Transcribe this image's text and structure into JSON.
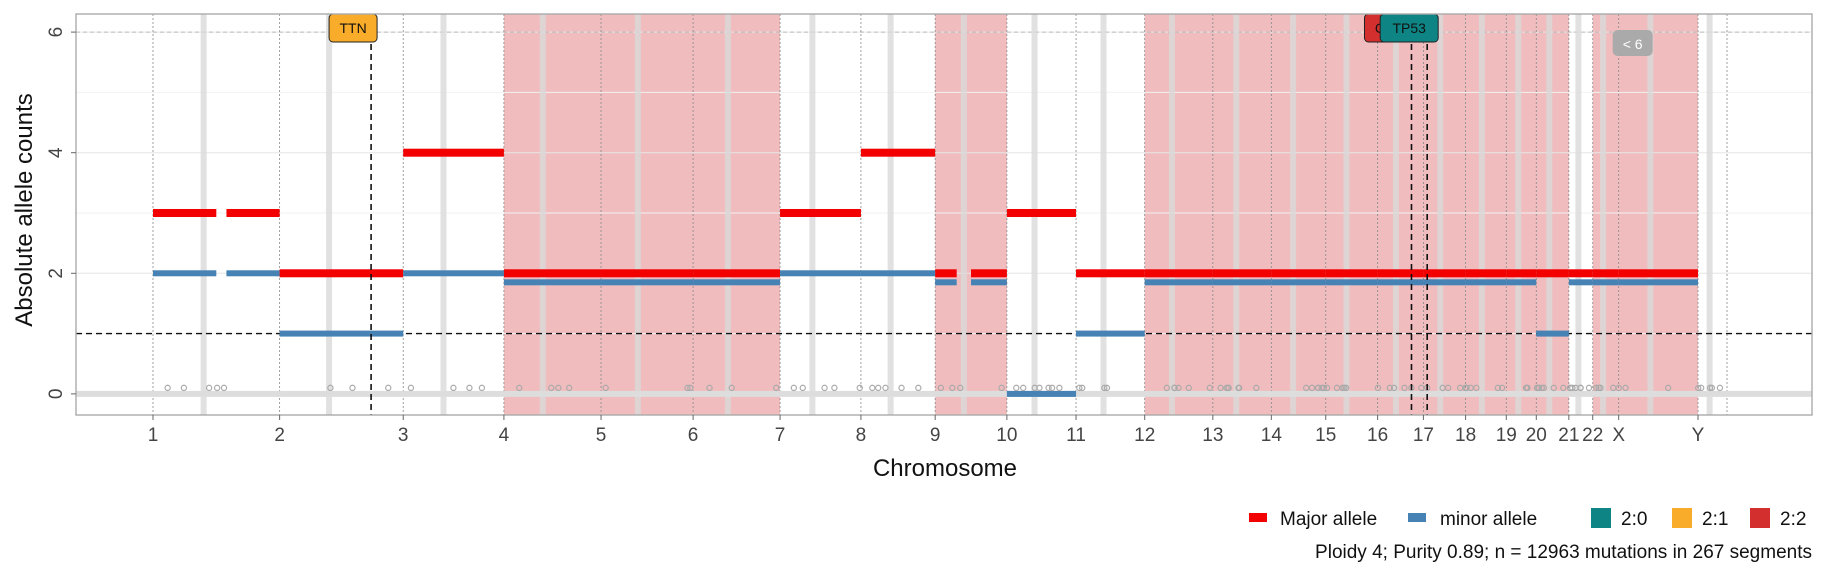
{
  "chart_data": {
    "type": "segments",
    "xlabel": "Chromosome",
    "ylabel": "Absolute allele counts",
    "ylim": [
      -0.35,
      6.3
    ],
    "yticks": [
      0,
      2,
      4,
      6
    ],
    "hline": 1,
    "chromosomes": [
      "1",
      "2",
      "3",
      "4",
      "5",
      "6",
      "7",
      "8",
      "9",
      "10",
      "11",
      "12",
      "13",
      "14",
      "15",
      "16",
      "17",
      "18",
      "19",
      "20",
      "21",
      "22",
      "X",
      "Y"
    ],
    "chrom_sizes_mb": [
      249,
      243,
      198,
      191,
      181,
      171,
      159,
      146,
      141,
      136,
      135,
      134,
      115,
      107,
      102,
      90,
      83,
      80,
      59,
      64,
      47,
      51,
      156,
      57
    ],
    "axis_labels": [
      "1",
      "2",
      "3",
      "4",
      "5",
      "6",
      "7",
      "8",
      "9",
      "10",
      "11",
      "12",
      "13",
      "14",
      "15",
      "16",
      "17",
      "18",
      "19",
      "20",
      "21",
      "22",
      "X",
      "Y"
    ],
    "segments": [
      {
        "chr": "1",
        "from": 0,
        "to": 0.5,
        "major": 3,
        "minor": 2
      },
      {
        "chr": "1",
        "from": 0.58,
        "to": 1,
        "major": 3,
        "minor": 2
      },
      {
        "chr": "2",
        "from": 0,
        "to": 1,
        "major": 2,
        "minor": 1
      },
      {
        "chr": "3",
        "from": 0,
        "to": 1,
        "major": 4,
        "minor": 2
      },
      {
        "chr": "4",
        "from": 0,
        "to": 1,
        "major": 2,
        "minor": 2
      },
      {
        "chr": "5",
        "from": 0,
        "to": 1,
        "major": 2,
        "minor": 2
      },
      {
        "chr": "6",
        "from": 0,
        "to": 1,
        "major": 2,
        "minor": 2
      },
      {
        "chr": "7",
        "from": 0,
        "to": 1,
        "major": 3,
        "minor": 2
      },
      {
        "chr": "8",
        "from": 0,
        "to": 1,
        "major": 4,
        "minor": 2
      },
      {
        "chr": "9",
        "from": 0,
        "to": 0.3,
        "major": 2,
        "minor": 2
      },
      {
        "chr": "9",
        "from": 0.5,
        "to": 1,
        "major": 2,
        "minor": 2
      },
      {
        "chr": "10",
        "from": 0,
        "to": 1,
        "major": 3,
        "minor": 0
      },
      {
        "chr": "11",
        "from": 0,
        "to": 1,
        "major": 2,
        "minor": 1
      },
      {
        "chr": "12",
        "from": 0,
        "to": 1,
        "major": 2,
        "minor": 2
      },
      {
        "chr": "13",
        "from": 0,
        "to": 1,
        "major": 2,
        "minor": 2
      },
      {
        "chr": "14",
        "from": 0,
        "to": 1,
        "major": 2,
        "minor": 2
      },
      {
        "chr": "15",
        "from": 0,
        "to": 1,
        "major": 2,
        "minor": 2
      },
      {
        "chr": "16",
        "from": 0,
        "to": 1,
        "major": 2,
        "minor": 2
      },
      {
        "chr": "17",
        "from": 0,
        "to": 1,
        "major": 2,
        "minor": 2
      },
      {
        "chr": "18",
        "from": 0,
        "to": 1,
        "major": 2,
        "minor": 2
      },
      {
        "chr": "19",
        "from": 0,
        "to": 1,
        "major": 2,
        "minor": 2
      },
      {
        "chr": "20",
        "from": 0,
        "to": 1,
        "major": 2,
        "minor": 1
      },
      {
        "chr": "21",
        "from": 0,
        "to": 1,
        "major": 2,
        "minor": 2
      },
      {
        "chr": "22",
        "from": 0,
        "to": 1,
        "major": 2,
        "minor": 2
      },
      {
        "chr": "X",
        "from": 0,
        "to": 1,
        "major": 2,
        "minor": 2
      }
    ],
    "highlight_chromosomes": [
      "4",
      "5",
      "6",
      "9",
      "12",
      "13",
      "14",
      "15",
      "16",
      "17",
      "18",
      "19",
      "20",
      "22",
      "X"
    ],
    "genes": [
      {
        "name": "TTN",
        "chr": "2",
        "pos": 0.74,
        "color": "#F9AC29"
      },
      {
        "name": "CTCF",
        "chr": "16",
        "pos": 0.74,
        "color": "#D32F2F"
      },
      {
        "name": "TP53",
        "chr": "17",
        "pos": 0.09,
        "color": "#0E8484"
      }
    ],
    "badge": "< 6",
    "legend": {
      "major": "Major allele",
      "minor": "minor allele",
      "major_color": "#F30000",
      "minor_color": "#4682B4",
      "karyotypes": [
        {
          "label": "2:0",
          "color": "#0E8484"
        },
        {
          "label": "2:1",
          "color": "#F9AC29"
        },
        {
          "label": "2:2",
          "color": "#D32F2F"
        }
      ]
    },
    "caption": "Ploidy 4; Purity  0.89; n = 12963 mutations in 267 segments"
  }
}
